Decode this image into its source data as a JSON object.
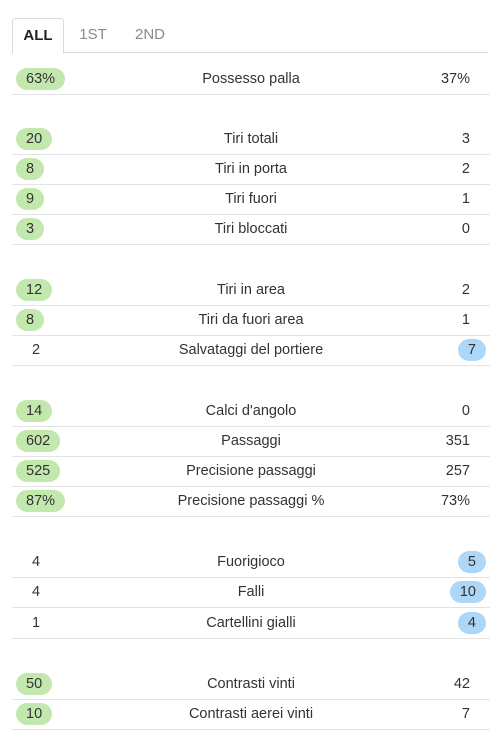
{
  "tabs": [
    {
      "label": "ALL",
      "active": true
    },
    {
      "label": "1ST",
      "active": false
    },
    {
      "label": "2ND",
      "active": false
    }
  ],
  "stats": [
    {
      "label": "Possesso palla",
      "home": "63%",
      "away": "37%",
      "winner": "home"
    },
    {
      "label": "Tiri totali",
      "home": "20",
      "away": "3",
      "winner": "home"
    },
    {
      "label": "Tiri in porta",
      "home": "8",
      "away": "2",
      "winner": "home"
    },
    {
      "label": "Tiri fuori",
      "home": "9",
      "away": "1",
      "winner": "home"
    },
    {
      "label": "Tiri bloccati",
      "home": "3",
      "away": "0",
      "winner": "home"
    },
    {
      "label": "Tiri in area",
      "home": "12",
      "away": "2",
      "winner": "home"
    },
    {
      "label": "Tiri da fuori area",
      "home": "8",
      "away": "1",
      "winner": "home"
    },
    {
      "label": "Salvataggi del portiere",
      "home": "2",
      "away": "7",
      "winner": "away"
    },
    {
      "label": "Calci d'angolo",
      "home": "14",
      "away": "0",
      "winner": "home"
    },
    {
      "label": "Passaggi",
      "home": "602",
      "away": "351",
      "winner": "home"
    },
    {
      "label": "Precisione passaggi",
      "home": "525",
      "away": "257",
      "winner": "home"
    },
    {
      "label": "Precisione passaggi %",
      "home": "87%",
      "away": "73%",
      "winner": "home"
    },
    {
      "label": "Fuorigioco",
      "home": "4",
      "away": "5",
      "winner": "away"
    },
    {
      "label": "Falli",
      "home": "4",
      "away": "10",
      "winner": "away"
    },
    {
      "label": "Cartellini gialli",
      "home": "1",
      "away": "4",
      "winner": "away"
    },
    {
      "label": "Contrasti vinti",
      "home": "50",
      "away": "42",
      "winner": "home"
    },
    {
      "label": "Contrasti aerei vinti",
      "home": "10",
      "away": "7",
      "winner": "home"
    }
  ],
  "colors": {
    "home_highlight": "#c2e8ad",
    "away_highlight": "#aed7f7"
  }
}
